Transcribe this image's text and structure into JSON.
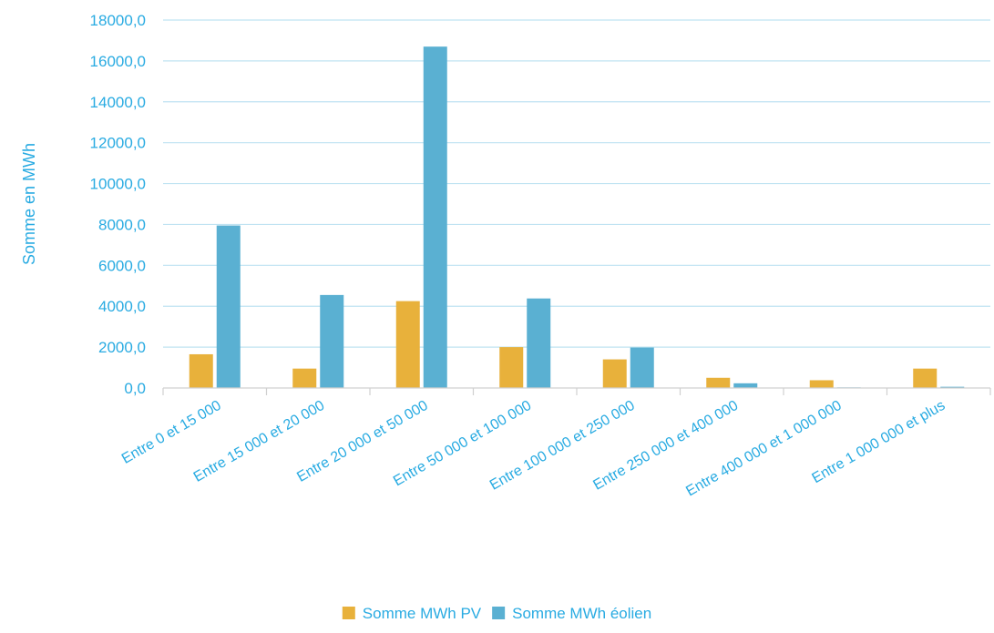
{
  "chart_data": {
    "type": "bar",
    "title": "",
    "xlabel": "",
    "ylabel": "Somme en MWh",
    "ylim": [
      0,
      18000
    ],
    "ytick_step": 2000,
    "ytick_labels": [
      "0,0",
      "2000,0",
      "4000,0",
      "6000,0",
      "8000,0",
      "10000,0",
      "12000,0",
      "14000,0",
      "16000,0",
      "18000,0"
    ],
    "grid": true,
    "legend_position": "bottom",
    "categories": [
      "Entre  0  et  15 000",
      "Entre 15 000  et  20 000",
      "Entre  20 000  et  50 000",
      "Entre  50 000  et  100 000",
      "Entre  100 000  et  250 000",
      "Entre  250 000  et  400 000",
      "Entre  400 000  et 1 000 000",
      "Entre 1 000 000  et plus"
    ],
    "series": [
      {
        "name": "Somme MWh PV",
        "color": "#e8b13b",
        "values": [
          1650,
          950,
          4250,
          2000,
          1400,
          500,
          380,
          950
        ]
      },
      {
        "name": "Somme MWh éolien",
        "color": "#5ab0d2",
        "values": [
          7950,
          4550,
          16700,
          4380,
          1980,
          230,
          30,
          60
        ]
      }
    ],
    "colors": {
      "text": "#29abe2",
      "grid": "#bfe3f2",
      "axis": "#d0d0d0"
    }
  }
}
